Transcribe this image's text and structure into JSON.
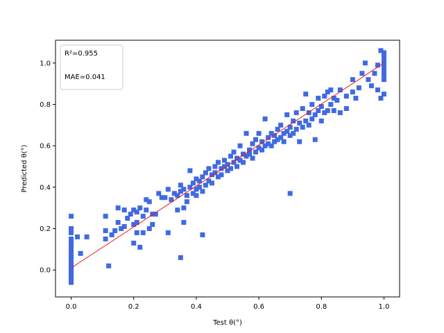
{
  "chart_data": {
    "type": "scatter",
    "title": "",
    "xlabel": "Test θ(°)",
    "ylabel": "Predicted θ(°)",
    "xlim": [
      -0.05,
      1.05
    ],
    "ylim": [
      -0.13,
      1.11
    ],
    "xticks": [
      0.0,
      0.2,
      0.4,
      0.6,
      0.8,
      1.0
    ],
    "xtick_labels": [
      "0.0",
      "0.2",
      "0.4",
      "0.6",
      "0.8",
      "1.0"
    ],
    "yticks": [
      0.0,
      0.2,
      0.4,
      0.6,
      0.8,
      1.0
    ],
    "ytick_labels": [
      "0.0",
      "0.2",
      "0.4",
      "0.6",
      "0.8",
      "1.0"
    ],
    "grid": false,
    "annotations": [
      "R²=0.955",
      "MAE=0.041"
    ],
    "annotation_placement": "top-left",
    "fit_line": {
      "x": [
        0.0,
        1.0
      ],
      "y": [
        0.01,
        1.0
      ],
      "color": "#e41a1c"
    },
    "marker_color": "#4169e1",
    "points": [
      [
        0.0,
        -0.06
      ],
      [
        0.0,
        -0.05
      ],
      [
        0.0,
        -0.04
      ],
      [
        0.0,
        -0.03
      ],
      [
        0.0,
        -0.02
      ],
      [
        0.0,
        -0.01
      ],
      [
        0.0,
        0.0
      ],
      [
        0.0,
        0.01
      ],
      [
        0.0,
        0.02
      ],
      [
        0.0,
        0.03
      ],
      [
        0.0,
        0.04
      ],
      [
        0.0,
        0.05
      ],
      [
        0.0,
        0.06
      ],
      [
        0.0,
        0.08
      ],
      [
        0.0,
        0.1
      ],
      [
        0.0,
        0.12
      ],
      [
        0.0,
        0.13
      ],
      [
        0.0,
        0.15
      ],
      [
        0.0,
        0.18
      ],
      [
        0.0,
        0.2
      ],
      [
        0.0,
        0.26
      ],
      [
        0.02,
        0.16
      ],
      [
        0.03,
        0.08
      ],
      [
        0.05,
        0.16
      ],
      [
        0.11,
        0.15
      ],
      [
        0.11,
        0.19
      ],
      [
        0.11,
        0.26
      ],
      [
        0.12,
        0.02
      ],
      [
        0.13,
        0.17
      ],
      [
        0.14,
        0.19
      ],
      [
        0.15,
        0.23
      ],
      [
        0.15,
        0.3
      ],
      [
        0.16,
        0.2
      ],
      [
        0.17,
        0.21
      ],
      [
        0.17,
        0.29
      ],
      [
        0.18,
        0.25
      ],
      [
        0.19,
        0.27
      ],
      [
        0.2,
        0.13
      ],
      [
        0.2,
        0.22
      ],
      [
        0.2,
        0.29
      ],
      [
        0.21,
        0.18
      ],
      [
        0.21,
        0.23
      ],
      [
        0.21,
        0.28
      ],
      [
        0.22,
        0.11
      ],
      [
        0.22,
        0.3
      ],
      [
        0.23,
        0.18
      ],
      [
        0.23,
        0.26
      ],
      [
        0.24,
        0.29
      ],
      [
        0.24,
        0.34
      ],
      [
        0.25,
        0.2
      ],
      [
        0.25,
        0.33
      ],
      [
        0.26,
        0.27
      ],
      [
        0.26,
        0.22
      ],
      [
        0.27,
        0.27
      ],
      [
        0.28,
        0.37
      ],
      [
        0.29,
        0.35
      ],
      [
        0.3,
        0.35
      ],
      [
        0.31,
        0.18
      ],
      [
        0.31,
        0.39
      ],
      [
        0.32,
        0.34
      ],
      [
        0.33,
        0.37
      ],
      [
        0.34,
        0.29
      ],
      [
        0.34,
        0.36
      ],
      [
        0.35,
        0.06
      ],
      [
        0.35,
        0.38
      ],
      [
        0.35,
        0.41
      ],
      [
        0.36,
        0.23
      ],
      [
        0.36,
        0.3
      ],
      [
        0.36,
        0.39
      ],
      [
        0.37,
        0.33
      ],
      [
        0.37,
        0.36
      ],
      [
        0.38,
        0.4
      ],
      [
        0.38,
        0.48
      ],
      [
        0.39,
        0.37
      ],
      [
        0.39,
        0.42
      ],
      [
        0.4,
        0.36
      ],
      [
        0.4,
        0.39
      ],
      [
        0.4,
        0.44
      ],
      [
        0.41,
        0.4
      ],
      [
        0.41,
        0.43
      ],
      [
        0.42,
        0.17
      ],
      [
        0.42,
        0.45
      ],
      [
        0.42,
        0.38
      ],
      [
        0.43,
        0.41
      ],
      [
        0.43,
        0.47
      ],
      [
        0.44,
        0.43
      ],
      [
        0.44,
        0.49
      ],
      [
        0.45,
        0.42
      ],
      [
        0.45,
        0.46
      ],
      [
        0.46,
        0.47
      ],
      [
        0.46,
        0.5
      ],
      [
        0.47,
        0.45
      ],
      [
        0.47,
        0.52
      ],
      [
        0.48,
        0.46
      ],
      [
        0.48,
        0.49
      ],
      [
        0.49,
        0.5
      ],
      [
        0.49,
        0.53
      ],
      [
        0.5,
        0.48
      ],
      [
        0.5,
        0.51
      ],
      [
        0.51,
        0.49
      ],
      [
        0.51,
        0.55
      ],
      [
        0.52,
        0.52
      ],
      [
        0.52,
        0.57
      ],
      [
        0.53,
        0.5
      ],
      [
        0.53,
        0.54
      ],
      [
        0.54,
        0.53
      ],
      [
        0.54,
        0.6
      ],
      [
        0.55,
        0.52
      ],
      [
        0.55,
        0.56
      ],
      [
        0.56,
        0.55
      ],
      [
        0.56,
        0.66
      ],
      [
        0.57,
        0.56
      ],
      [
        0.57,
        0.58
      ],
      [
        0.58,
        0.54
      ],
      [
        0.58,
        0.61
      ],
      [
        0.59,
        0.57
      ],
      [
        0.59,
        0.63
      ],
      [
        0.6,
        0.59
      ],
      [
        0.6,
        0.66
      ],
      [
        0.61,
        0.58
      ],
      [
        0.61,
        0.62
      ],
      [
        0.62,
        0.6
      ],
      [
        0.62,
        0.73
      ],
      [
        0.63,
        0.61
      ],
      [
        0.63,
        0.64
      ],
      [
        0.64,
        0.6
      ],
      [
        0.64,
        0.66
      ],
      [
        0.65,
        0.62
      ],
      [
        0.65,
        0.65
      ],
      [
        0.66,
        0.63
      ],
      [
        0.66,
        0.68
      ],
      [
        0.67,
        0.64
      ],
      [
        0.67,
        0.7
      ],
      [
        0.68,
        0.62
      ],
      [
        0.68,
        0.66
      ],
      [
        0.69,
        0.67
      ],
      [
        0.69,
        0.75
      ],
      [
        0.7,
        0.37
      ],
      [
        0.7,
        0.65
      ],
      [
        0.7,
        0.69
      ],
      [
        0.71,
        0.66
      ],
      [
        0.71,
        0.72
      ],
      [
        0.72,
        0.68
      ],
      [
        0.72,
        0.76
      ],
      [
        0.73,
        0.62
      ],
      [
        0.73,
        0.71
      ],
      [
        0.74,
        0.69
      ],
      [
        0.74,
        0.78
      ],
      [
        0.75,
        0.72
      ],
      [
        0.75,
        0.85
      ],
      [
        0.76,
        0.7
      ],
      [
        0.76,
        0.76
      ],
      [
        0.77,
        0.73
      ],
      [
        0.77,
        0.8
      ],
      [
        0.78,
        0.75
      ],
      [
        0.78,
        0.63
      ],
      [
        0.79,
        0.77
      ],
      [
        0.79,
        0.83
      ],
      [
        0.8,
        0.72
      ],
      [
        0.8,
        0.79
      ],
      [
        0.81,
        0.76
      ],
      [
        0.81,
        0.84
      ],
      [
        0.82,
        0.77
      ],
      [
        0.82,
        0.86
      ],
      [
        0.83,
        0.8
      ],
      [
        0.83,
        0.87
      ],
      [
        0.84,
        0.77
      ],
      [
        0.84,
        0.83
      ],
      [
        0.85,
        0.82
      ],
      [
        0.86,
        0.76
      ],
      [
        0.86,
        0.87
      ],
      [
        0.88,
        0.78
      ],
      [
        0.88,
        0.84
      ],
      [
        0.9,
        0.86
      ],
      [
        0.9,
        0.92
      ],
      [
        0.91,
        0.83
      ],
      [
        0.92,
        0.88
      ],
      [
        0.93,
        0.95
      ],
      [
        0.94,
        1.0
      ],
      [
        0.95,
        0.92
      ],
      [
        0.96,
        0.89
      ],
      [
        0.97,
        0.95
      ],
      [
        0.98,
        0.87
      ],
      [
        0.98,
        0.99
      ],
      [
        0.99,
        0.83
      ],
      [
        0.99,
        1.06
      ],
      [
        1.0,
        0.85
      ],
      [
        1.0,
        0.92
      ],
      [
        1.0,
        0.94
      ],
      [
        1.0,
        0.96
      ],
      [
        1.0,
        0.98
      ],
      [
        1.0,
        1.0
      ],
      [
        1.0,
        1.02
      ],
      [
        1.0,
        1.04
      ],
      [
        1.0,
        1.05
      ]
    ]
  }
}
